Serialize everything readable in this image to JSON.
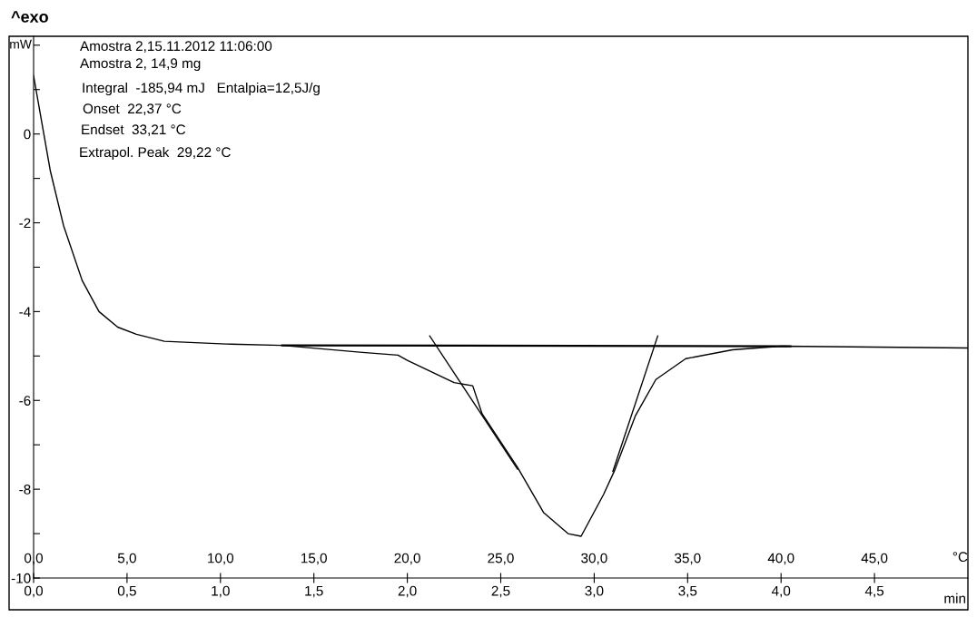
{
  "chart_data": {
    "type": "line",
    "title": "^exo",
    "ylabel": "mW",
    "xlabel": "°C",
    "x2label": "min",
    "xlim": [
      0,
      50
    ],
    "ylim": [
      -10,
      2.2
    ],
    "xticks": [
      {
        "value": 0,
        "label": "0,0"
      },
      {
        "value": 5,
        "label": "5,0"
      },
      {
        "value": 10,
        "label": "10,0"
      },
      {
        "value": 15,
        "label": "15,0"
      },
      {
        "value": 20,
        "label": "20,0"
      },
      {
        "value": 25,
        "label": "25,0"
      },
      {
        "value": 30,
        "label": "30,0"
      },
      {
        "value": 35,
        "label": "35,0"
      },
      {
        "value": 40,
        "label": "40,0"
      },
      {
        "value": 45,
        "label": "45,0"
      }
    ],
    "x2lim": [
      0,
      5.0
    ],
    "x2ticks": [
      {
        "value": 0,
        "label": "0,0"
      },
      {
        "value": 0.5,
        "label": "0,5"
      },
      {
        "value": 1.0,
        "label": "1,0"
      },
      {
        "value": 1.5,
        "label": "1,5"
      },
      {
        "value": 2.0,
        "label": "2,0"
      },
      {
        "value": 2.5,
        "label": "2,5"
      },
      {
        "value": 3.0,
        "label": "3,0"
      },
      {
        "value": 3.5,
        "label": "3,5"
      },
      {
        "value": 4.0,
        "label": "4,0"
      },
      {
        "value": 4.5,
        "label": "4,5"
      }
    ],
    "yticks": [
      {
        "value": 2,
        "label": null
      },
      {
        "value": 1,
        "label": null
      },
      0,
      {
        "value": -1,
        "label": null
      },
      -2,
      {
        "value": -3,
        "label": null
      },
      -4,
      {
        "value": -5,
        "label": null
      },
      -6,
      {
        "value": -7,
        "label": null
      },
      -8,
      {
        "value": -9,
        "label": null
      },
      -10
    ],
    "grid": false,
    "legend": false,
    "marker": "none",
    "line_style": "solid",
    "series": [
      {
        "color": "#000000",
        "x": [
          0,
          0.9,
          1.6,
          2.6,
          3.5,
          4.5,
          5.5,
          7.0,
          10.3,
          13.3,
          17.6,
          19.5,
          20.0,
          22.5,
          23.5,
          24.0,
          25.9,
          27.3,
          28.6,
          29.3,
          30.5,
          31.1,
          32.2,
          33.3,
          34.9,
          37.4,
          40.0,
          45.0,
          50.0
        ],
        "values": [
          1.31,
          -0.84,
          -2.06,
          -3.3,
          -4.0,
          -4.35,
          -4.51,
          -4.67,
          -4.73,
          -4.76,
          -4.92,
          -4.98,
          -5.1,
          -5.6,
          -5.67,
          -6.3,
          -7.51,
          -8.53,
          -9.0,
          -9.06,
          -8.12,
          -7.57,
          -6.35,
          -5.53,
          -5.06,
          -4.86,
          -4.78,
          -4.8,
          -4.82
        ]
      },
      {
        "color": "#000000",
        "x": [
          13.3,
          40.5
        ],
        "values": [
          -4.76,
          -4.78
        ]
      },
      {
        "color": "#000000",
        "x": [
          21.2,
          25.9
        ],
        "values": [
          -4.55,
          -7.55
        ]
      },
      {
        "color": "#000000",
        "x": [
          31.0,
          33.4
        ],
        "values": [
          -7.6,
          -4.55
        ]
      }
    ],
    "annotations": [
      "Amostra 2,15.11.2012 11:06:00",
      "Amostra 2, 14,9 mg",
      "Integral  -185,94 mJ   Entalpia=12,5J/g",
      "Onset  22,37 °C",
      "Endset  33,21 °C",
      "Extrapol. Peak  29,22 °C"
    ]
  }
}
